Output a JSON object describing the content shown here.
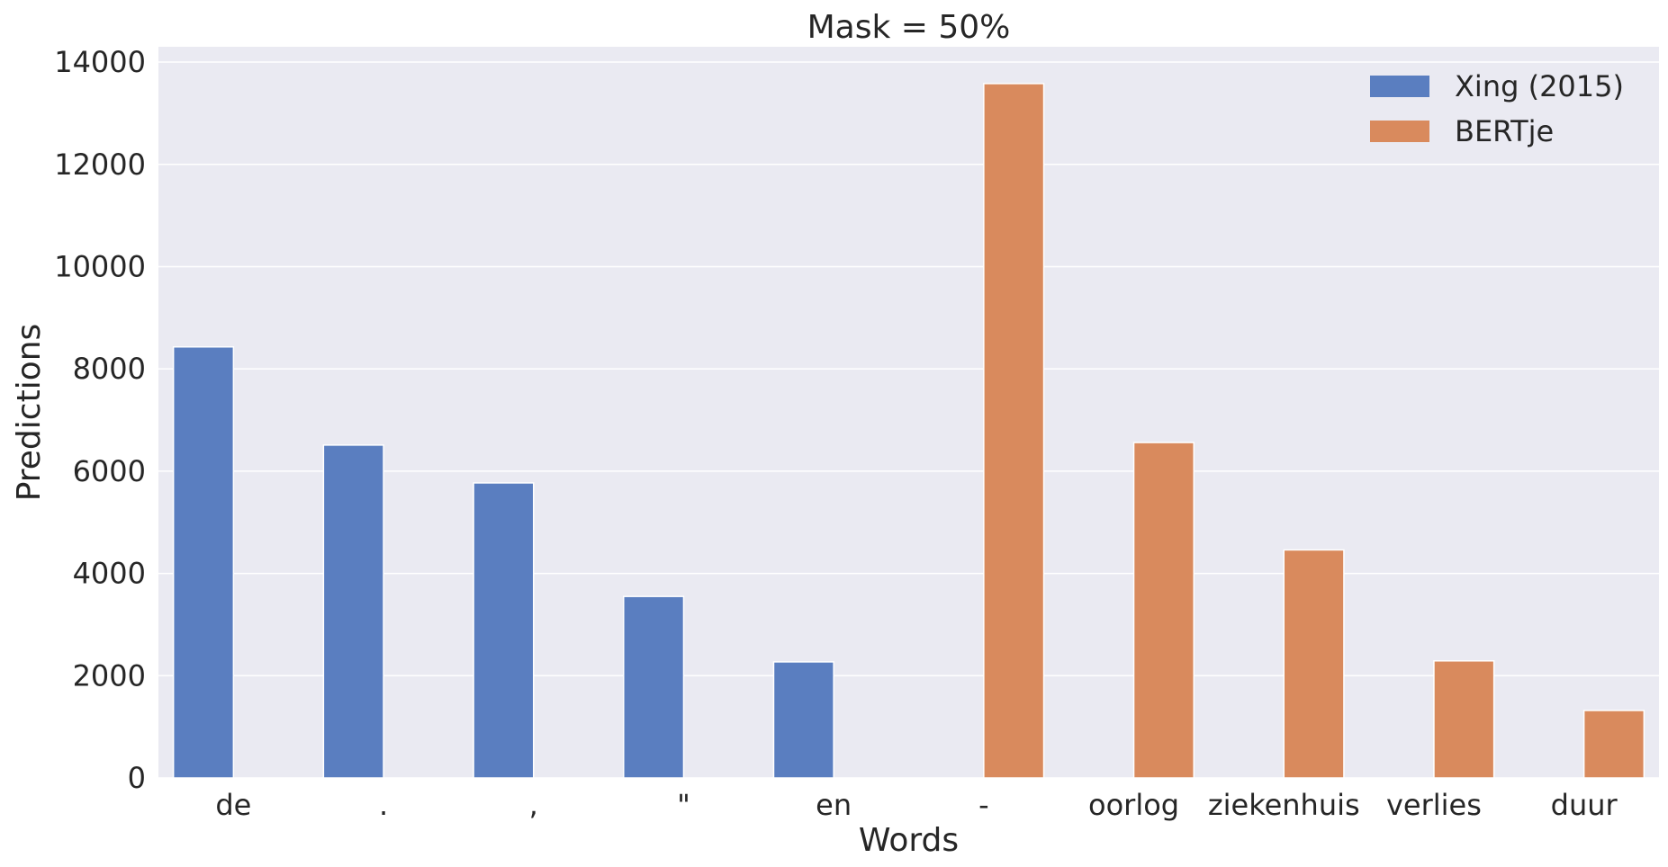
{
  "chart_data": {
    "type": "bar",
    "title": "Mask = 50%",
    "xlabel": "Words",
    "ylabel": "Predictions",
    "categories": [
      "de",
      ".",
      ",",
      "\"",
      "en",
      "-",
      "oorlog",
      "ziekenhuis",
      "verlies",
      "duur"
    ],
    "series": [
      {
        "name": "Xing (2015)",
        "color": "#5a7ec0",
        "values": [
          8430,
          6510,
          5770,
          3550,
          2270,
          null,
          null,
          null,
          null,
          null
        ]
      },
      {
        "name": "BERTje",
        "color": "#d98a5d",
        "values": [
          null,
          null,
          null,
          null,
          null,
          13580,
          6560,
          4460,
          2290,
          1320
        ]
      }
    ],
    "ylim": [
      0,
      14300
    ],
    "yticks": [
      0,
      2000,
      4000,
      6000,
      8000,
      10000,
      12000,
      14000
    ],
    "grid": true,
    "legend": "top-right",
    "background": "#eaeaf2"
  }
}
